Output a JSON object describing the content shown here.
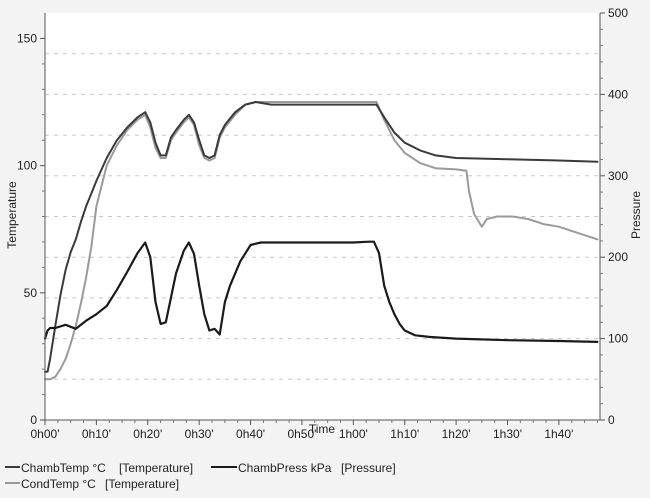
{
  "chart_data": {
    "type": "line",
    "xlabel": "Time",
    "ylabel_left": "Temperature",
    "ylabel_right": "Pressure",
    "x_unit": "minutes",
    "xlim": [
      0,
      108
    ],
    "ylim_left": [
      0,
      160
    ],
    "ylim_right": [
      0,
      500
    ],
    "x_ticks": [
      {
        "value": 0,
        "label": "0h00'"
      },
      {
        "value": 10,
        "label": "0h10'"
      },
      {
        "value": 20,
        "label": "0h20'"
      },
      {
        "value": 30,
        "label": "0h30'"
      },
      {
        "value": 40,
        "label": "0h40'"
      },
      {
        "value": 50,
        "label": "0h50'"
      },
      {
        "value": 60,
        "label": "1h00'"
      },
      {
        "value": 70,
        "label": "1h10'"
      },
      {
        "value": 80,
        "label": "1h20'"
      },
      {
        "value": 90,
        "label": "1h30'"
      },
      {
        "value": 100,
        "label": "1h40'"
      }
    ],
    "y_ticks_left": [
      {
        "value": 0,
        "label": "0"
      },
      {
        "value": 50,
        "label": "50"
      },
      {
        "value": 100,
        "label": "100"
      },
      {
        "value": 150,
        "label": "150"
      }
    ],
    "y_ticks_right": [
      {
        "value": 0,
        "label": "0"
      },
      {
        "value": 100,
        "label": "100"
      },
      {
        "value": 200,
        "label": "200"
      },
      {
        "value": 300,
        "label": "300"
      },
      {
        "value": 400,
        "label": "400"
      },
      {
        "value": 500,
        "label": "500"
      }
    ],
    "grid": "horizontal",
    "legend_position": "bottom",
    "series": [
      {
        "name": "ChambTemp °C",
        "legend_label": "ChambTemp °C",
        "axis_label": "[Temperature]",
        "axis": "left",
        "color": "#3a3a3a",
        "x": [
          0,
          0.5,
          1,
          2,
          3,
          4,
          5,
          6,
          7,
          8,
          9,
          10,
          12,
          14,
          16,
          18,
          19.5,
          20.5,
          21.5,
          22.5,
          23.5,
          24.5,
          25.5,
          27,
          28,
          29,
          30,
          31,
          32,
          33,
          34,
          35,
          37,
          39,
          41,
          44,
          50,
          56,
          60,
          63,
          64.5,
          66,
          68,
          70,
          73,
          76,
          80,
          90,
          100,
          107.5
        ],
        "y": [
          19,
          19,
          24,
          37,
          49,
          59,
          66,
          71,
          78,
          84,
          89,
          94,
          103,
          110,
          115,
          119,
          121,
          117,
          109,
          104,
          104,
          111,
          114,
          118,
          120,
          117,
          110,
          104,
          103,
          104,
          112,
          116,
          121,
          124,
          125,
          124,
          124,
          124,
          124,
          124,
          124,
          119,
          113,
          109,
          106,
          104,
          103,
          102.5,
          102,
          101.5
        ]
      },
      {
        "name": "CondTemp °C",
        "legend_label": "CondTemp °C",
        "axis_label": "[Temperature]",
        "axis": "left",
        "color": "#9a9a9a",
        "x": [
          0,
          0.5,
          1,
          2,
          3,
          4,
          5,
          6,
          7,
          8,
          9,
          10,
          12,
          14,
          16,
          18,
          19.5,
          20.5,
          21.5,
          22.5,
          23.5,
          24.5,
          25.5,
          27,
          28,
          29,
          30,
          31,
          32,
          33,
          34,
          35,
          37,
          39,
          41,
          44,
          50,
          56,
          60,
          63,
          64.5,
          66,
          68,
          70,
          73,
          76,
          80,
          82,
          82.5,
          83.5,
          85,
          86,
          88,
          91,
          94,
          97,
          100,
          103,
          106,
          107.5
        ],
        "y": [
          16,
          16,
          16,
          17,
          20,
          24,
          30,
          37,
          46,
          56,
          68,
          84,
          100,
          108,
          114,
          118,
          120,
          115,
          107,
          103,
          103,
          110,
          113,
          117,
          119,
          116,
          108,
          103,
          102,
          103,
          111,
          115,
          120,
          124,
          125,
          125,
          125,
          125,
          125,
          125,
          125,
          118,
          110,
          105,
          101,
          99,
          98.5,
          98,
          90,
          81,
          76,
          79,
          80,
          80,
          79,
          77,
          76,
          74,
          72,
          71
        ]
      },
      {
        "name": "ChambPress kPa",
        "legend_label": "ChambPress kPa",
        "axis_label": "[Pressure]",
        "axis": "right",
        "color": "#1a1a1a",
        "x": [
          0,
          0.5,
          1,
          2,
          4,
          6,
          8,
          10,
          12,
          14,
          16,
          18,
          19.5,
          20.5,
          21.5,
          22.5,
          23.5,
          24.5,
          25.5,
          27,
          28,
          29,
          30,
          31,
          32,
          33,
          34,
          35,
          36,
          38,
          40,
          42,
          44,
          50,
          56,
          60,
          63,
          64,
          65,
          66,
          67,
          68,
          69,
          70,
          72,
          75,
          80,
          90,
          100,
          107.5
        ],
        "y": [
          100,
          110,
          113,
          113,
          117,
          112,
          122,
          130,
          140,
          160,
          182,
          205,
          218,
          200,
          145,
          118,
          120,
          150,
          180,
          208,
          218,
          204,
          165,
          130,
          110,
          112,
          105,
          145,
          165,
          195,
          215,
          218,
          218,
          218,
          218,
          218,
          219,
          219,
          205,
          165,
          145,
          130,
          118,
          110,
          104,
          102,
          100,
          98,
          97,
          96
        ]
      }
    ]
  }
}
